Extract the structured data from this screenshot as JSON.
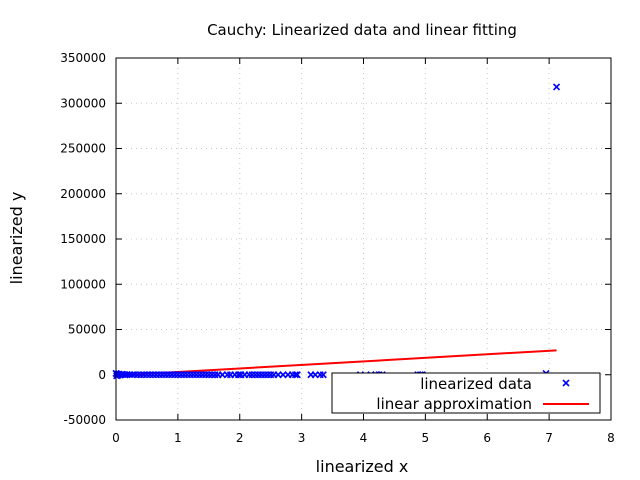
{
  "chart_data": {
    "type": "scatter",
    "title": "Cauchy: Linearized data and linear fitting",
    "xlabel": "linearized x",
    "ylabel": "linearized y",
    "xlim": [
      0,
      8
    ],
    "ylim": [
      -50000,
      350000
    ],
    "xticks": [
      0,
      1,
      2,
      3,
      4,
      5,
      6,
      7,
      8
    ],
    "yticks": [
      -50000,
      0,
      50000,
      100000,
      150000,
      200000,
      250000,
      300000,
      350000
    ],
    "grid": true,
    "legend_position": "bottom-right",
    "colors": {
      "data": "#0000ff",
      "fit": "#ff0000"
    },
    "series": [
      {
        "name": "linearized data",
        "style": "cross",
        "x": [
          0.0,
          0.01,
          0.02,
          0.03,
          0.05,
          0.07,
          0.09,
          0.12,
          0.15,
          0.18,
          0.22,
          0.26,
          0.3,
          0.35,
          0.4,
          0.45,
          0.5,
          0.55,
          0.6,
          0.65,
          0.7,
          0.75,
          0.8,
          0.85,
          0.9,
          0.95,
          1.0,
          1.05,
          1.1,
          1.15,
          1.2,
          1.25,
          1.3,
          1.35,
          1.4,
          1.45,
          1.5,
          1.55,
          1.6,
          1.65,
          1.72,
          1.8,
          1.85,
          1.92,
          1.98,
          2.02,
          2.08,
          2.15,
          2.2,
          2.25,
          2.3,
          2.35,
          2.4,
          2.45,
          2.5,
          2.55,
          2.62,
          2.7,
          2.78,
          2.85,
          2.9,
          2.93,
          3.15,
          3.22,
          3.3,
          3.35,
          3.95,
          4.12,
          4.2,
          4.25,
          4.3,
          4.88,
          4.92,
          4.95,
          6.95,
          7.12
        ],
        "y": [
          1500,
          -1200,
          900,
          -600,
          800,
          -300,
          500,
          200,
          -200,
          300,
          150,
          -100,
          200,
          100,
          -50,
          100,
          50,
          80,
          30,
          50,
          20,
          40,
          10,
          30,
          20,
          10,
          15,
          10,
          8,
          12,
          5,
          10,
          6,
          8,
          4,
          5,
          3,
          4,
          2,
          3,
          2,
          2,
          1,
          2,
          1,
          1,
          1,
          1,
          1,
          0,
          1,
          0,
          0,
          0,
          0,
          0,
          0,
          0,
          0,
          0,
          0,
          0,
          0,
          0,
          0,
          0,
          0,
          0,
          0,
          0,
          0,
          0,
          0,
          0,
          1500,
          318000
        ]
      },
      {
        "name": "linear approximation",
        "style": "line",
        "x": [
          0,
          7.12
        ],
        "y": [
          -900,
          27000
        ]
      }
    ]
  }
}
